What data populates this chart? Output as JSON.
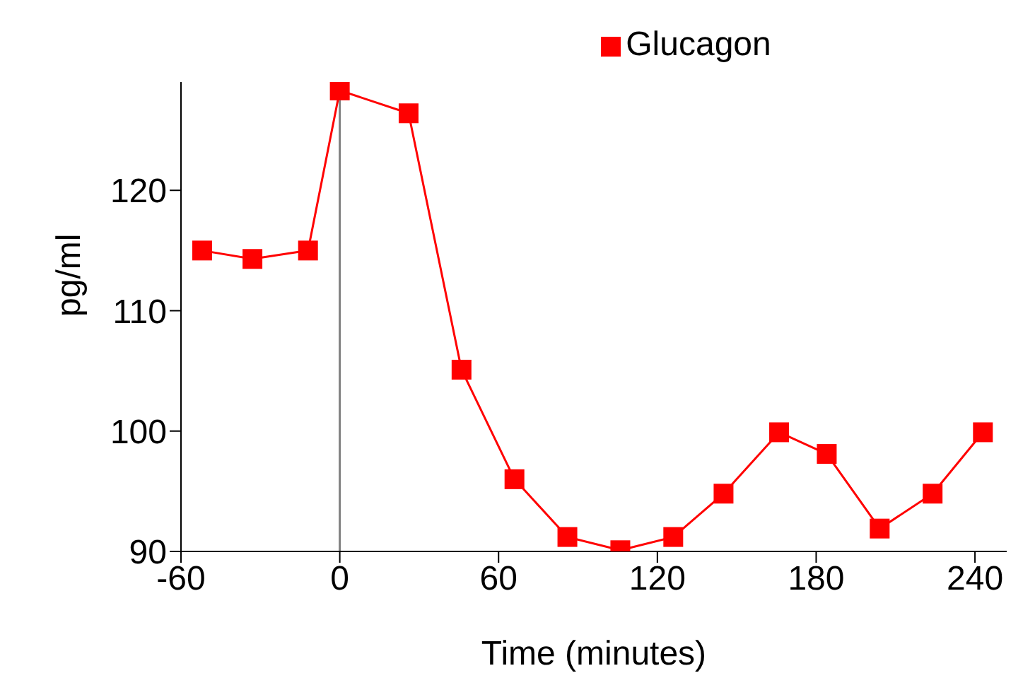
{
  "chart_data": {
    "type": "line",
    "xlabel": "Time (minutes)",
    "ylabel": "pg/ml",
    "x": [
      -52,
      -33,
      -12,
      0,
      26,
      46,
      66,
      86,
      106,
      126,
      145,
      166,
      184,
      204,
      224,
      243
    ],
    "series": [
      {
        "name": "Glucagon",
        "color": "#ff0000",
        "values": [
          115,
          114.3,
          115,
          128.3,
          126.4,
          105.1,
          96,
          91.2,
          90.1,
          91.2,
          94.8,
          99.9,
          98.1,
          91.9,
          94.8,
          99.9
        ]
      }
    ],
    "xlim": [
      -60,
      252
    ],
    "xticks": [
      -60,
      0,
      60,
      120,
      180,
      240
    ],
    "ylim": [
      90,
      129
    ],
    "yticks": [
      90,
      100,
      110,
      120
    ],
    "ref_lines": [
      {
        "axis": "x",
        "value": 0,
        "color": "#808080"
      }
    ],
    "grid": false,
    "legend": "top",
    "marker": "square",
    "line_style": "solid"
  }
}
